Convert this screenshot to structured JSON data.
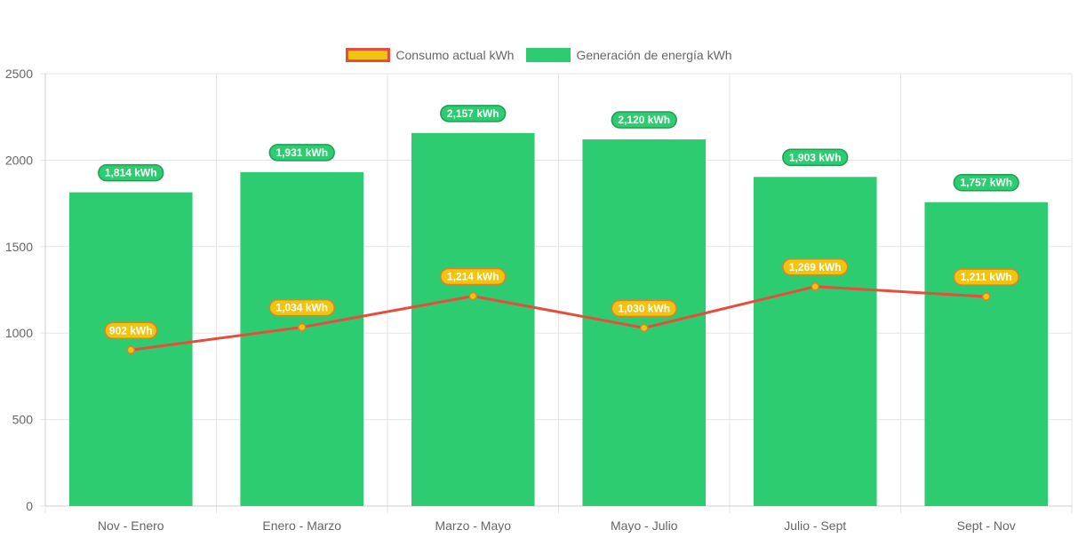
{
  "legend": [
    {
      "label": "Consumo actual kWh"
    },
    {
      "label": "Generación de energía kWh"
    }
  ],
  "colors": {
    "generation": "#2ecc71",
    "consumption_line": "#e74c3c",
    "consumption_point": "#f1c40f",
    "point_border": "#e67e22",
    "grid": "#e5e5e5",
    "tick_text": "#666666"
  },
  "chart_data": {
    "type": "bar",
    "categories": [
      "Nov - Enero",
      "Enero - Marzo",
      "Marzo - Mayo",
      "Mayo - Julio",
      "Julio - Sept",
      "Sept - Nov"
    ],
    "ylim": [
      0,
      2500
    ],
    "yticks": [
      0,
      500,
      1000,
      1500,
      2000,
      2500
    ],
    "grid": true,
    "legend_position": "top",
    "series": [
      {
        "name": "Consumo actual kWh",
        "type": "line",
        "values": [
          902,
          1034,
          1214,
          1030,
          1269,
          1211
        ],
        "data_labels": [
          "902 kWh",
          "1,034 kWh",
          "1,214 kWh",
          "1,030 kWh",
          "1,269 kWh",
          "1,211 kWh"
        ]
      },
      {
        "name": "Generación de energía kWh",
        "type": "bar",
        "values": [
          1814,
          1931,
          2157,
          2120,
          1903,
          1757
        ],
        "data_labels": [
          "1,814 kWh",
          "1,931 kWh",
          "2,157 kWh",
          "2,120 kWh",
          "1,903 kWh",
          "1,757 kWh"
        ]
      }
    ]
  }
}
